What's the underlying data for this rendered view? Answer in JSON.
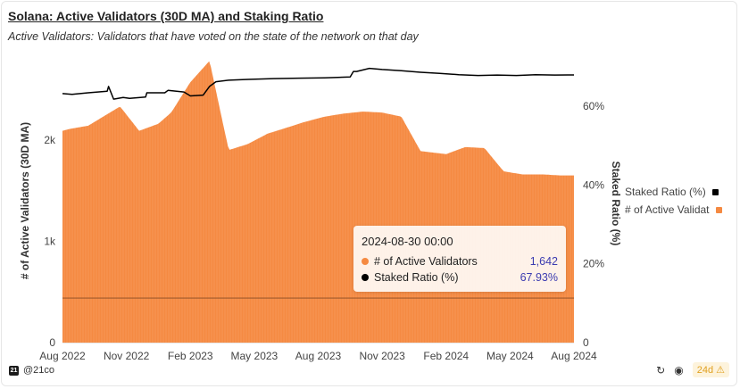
{
  "title": "Solana: Active Validators (30D MA) and Staking Ratio",
  "subtitle": "Active Validators: Validators that have voted on the state of the network on that day",
  "chart_data": {
    "type": "area+line",
    "x_ticks": [
      "Aug 2022",
      "Nov 2022",
      "Feb 2023",
      "May 2023",
      "Aug 2023",
      "Nov 2023",
      "Feb 2024",
      "May 2024",
      "Aug 2024"
    ],
    "y_left": {
      "label": "# of Active Validators (30D MA)",
      "ticks": [
        "0",
        "1k",
        "2k"
      ],
      "tick_values": [
        0,
        1000,
        2000
      ],
      "range": [
        0,
        2800
      ]
    },
    "y_right": {
      "label": "Staked Ratio (%)",
      "ticks": [
        "0",
        "20%",
        "40%",
        "60%"
      ],
      "tick_values": [
        0,
        20,
        40,
        60
      ],
      "range": [
        0,
        72
      ]
    },
    "series": [
      {
        "name": "# of Active Validators",
        "legend_label": "# of Active Validat",
        "color": "#f58a42",
        "axis": "left",
        "style": "area",
        "x": [
          0,
          0.12,
          0.4,
          0.9,
          1.2,
          1.5,
          1.7,
          2.0,
          2.3,
          2.6,
          2.9,
          3.2,
          3.5,
          3.8,
          4.1,
          4.4,
          4.7,
          5.0,
          5.3,
          5.6,
          6.0,
          6.3,
          6.6,
          6.9,
          7.2,
          7.5,
          7.8,
          8.0
        ],
        "values": [
          2090,
          2110,
          2140,
          2330,
          2090,
          2160,
          2270,
          2570,
          2780,
          1900,
          1960,
          2060,
          2120,
          2180,
          2230,
          2260,
          2280,
          2270,
          2230,
          1890,
          1860,
          1930,
          1920,
          1690,
          1660,
          1660,
          1650,
          1650
        ]
      },
      {
        "name": "Staked Ratio (%)",
        "legend_label": "Staked Ratio (%)",
        "color": "#000000",
        "axis": "right",
        "style": "line",
        "x": [
          0,
          0.15,
          0.4,
          0.7,
          0.72,
          0.8,
          0.95,
          1.05,
          1.3,
          1.32,
          1.6,
          1.65,
          1.9,
          2.0,
          2.2,
          2.3,
          2.4,
          2.6,
          2.9,
          3.3,
          3.7,
          4.1,
          4.5,
          4.55,
          4.6,
          4.8,
          5.0,
          5.3,
          5.6,
          5.9,
          6.2,
          6.5,
          6.8,
          7.1,
          7.4,
          7.7,
          8.0
        ],
        "values": [
          63.2,
          63.0,
          63.4,
          63.8,
          65.0,
          61.8,
          62.2,
          62.0,
          62.3,
          63.4,
          63.4,
          64.0,
          63.6,
          62.6,
          62.8,
          65.0,
          66.2,
          66.6,
          66.8,
          67.0,
          67.1,
          67.2,
          67.4,
          68.8,
          68.8,
          69.6,
          69.3,
          69.0,
          68.6,
          68.3,
          68.0,
          67.8,
          67.9,
          67.8,
          68.0,
          67.9,
          67.93
        ]
      }
    ],
    "annotation": {
      "type": "hline",
      "axis": "left",
      "value": 440
    },
    "tooltip": {
      "date": "2024-08-30 00:00",
      "rows": [
        {
          "label": "# of Active Validators",
          "value": "1,642",
          "color": "#f58a42"
        },
        {
          "label": "Staked Ratio (%)",
          "value": "67.93%",
          "color": "#000000"
        }
      ]
    }
  },
  "footer": {
    "handle": "@21co",
    "logo": "21",
    "age_badge": "24d"
  }
}
